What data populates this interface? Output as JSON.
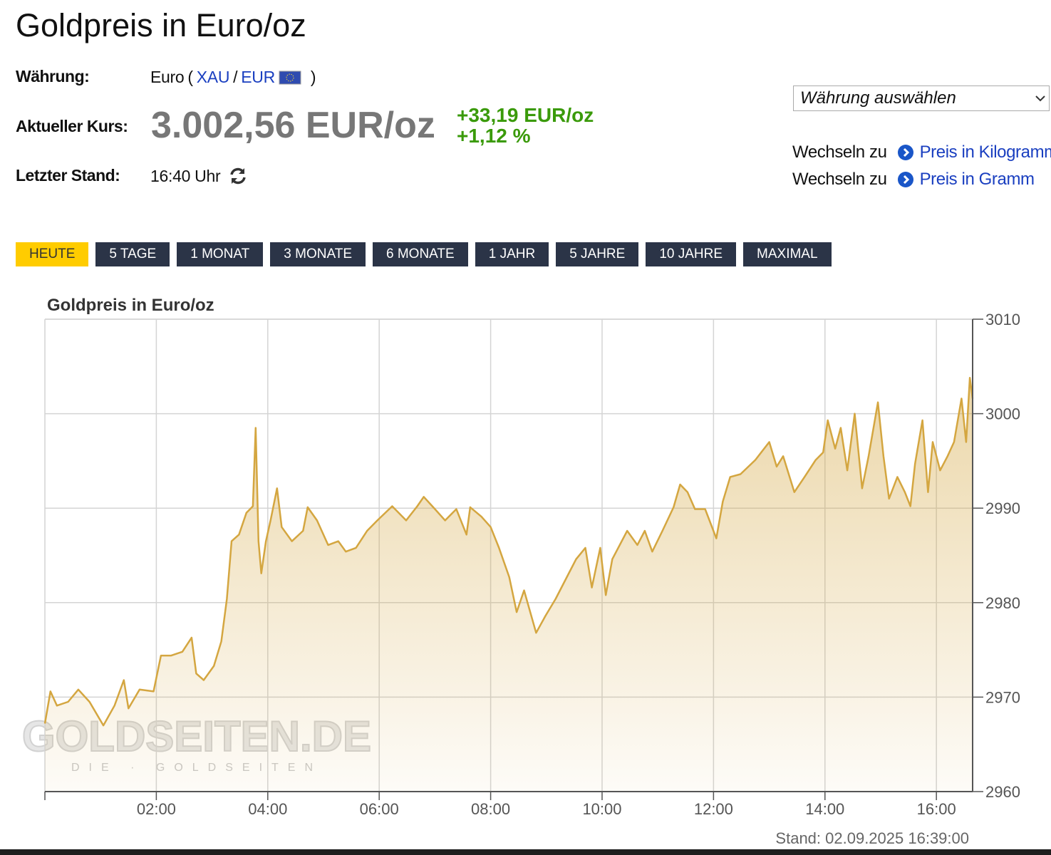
{
  "header": {
    "title": "Goldpreis in Euro/oz"
  },
  "info": {
    "currency_label": "Währung:",
    "currency_name": "Euro",
    "paren_open": "(",
    "base": "XAU",
    "slash": "/",
    "quote": "EUR",
    "paren_close": ")",
    "price_label": "Aktueller Kurs:",
    "price": "3.002,56 EUR/oz",
    "change_abs": "+33,19 EUR/oz",
    "change_pct": "+1,12 %",
    "time_label": "Letzter Stand:",
    "time": "16:40 Uhr"
  },
  "sidebar": {
    "select": "Währung auswählen",
    "links": [
      {
        "prefix": "Wechseln zu",
        "label": "Preis in Kilogramm"
      },
      {
        "prefix": "Wechseln zu",
        "label": "Preis in Gramm"
      }
    ]
  },
  "tabs": [
    "HEUTE",
    "5 TAGE",
    "1 MONAT",
    "3 MONATE",
    "6 MONATE",
    "1 JAHR",
    "5 JAHRE",
    "10 JAHRE",
    "MAXIMAL"
  ],
  "active_tab": 0,
  "chart_data": {
    "type": "area",
    "title": "Goldpreis in Euro/oz",
    "x": [
      "00:00",
      "00:06",
      "00:13",
      "00:25",
      "00:36",
      "00:48",
      "01:03",
      "01:15",
      "01:25",
      "01:30",
      "01:42",
      "01:57",
      "02:05",
      "02:16",
      "02:28",
      "02:38",
      "02:43",
      "02:51",
      "03:02",
      "03:10",
      "03:16",
      "03:21",
      "03:29",
      "03:37",
      "03:44",
      "03:47",
      "03:50",
      "03:53",
      "03:58",
      "04:03",
      "04:10",
      "04:15",
      "04:26",
      "04:38",
      "04:43",
      "04:53",
      "05:05",
      "05:16",
      "05:24",
      "05:35",
      "05:47",
      "05:58",
      "06:14",
      "06:29",
      "06:41",
      "06:48",
      "07:00",
      "07:11",
      "07:23",
      "07:34",
      "07:38",
      "07:50",
      "08:00",
      "08:09",
      "08:20",
      "08:28",
      "08:36",
      "08:49",
      "08:59",
      "09:10",
      "09:22",
      "09:32",
      "09:42",
      "09:49",
      "09:58",
      "10:04",
      "10:11",
      "10:27",
      "10:38",
      "10:46",
      "10:54",
      "11:05",
      "11:17",
      "11:24",
      "11:32",
      "11:40",
      "11:51",
      "12:03",
      "12:10",
      "12:18",
      "12:29",
      "12:45",
      "13:00",
      "13:08",
      "13:15",
      "13:27",
      "13:38",
      "13:50",
      "13:58",
      "14:03",
      "14:11",
      "14:17",
      "14:24",
      "14:32",
      "14:40",
      "14:47",
      "14:57",
      "15:03",
      "15:09",
      "15:18",
      "15:26",
      "15:32",
      "15:37",
      "15:45",
      "15:51",
      "15:56",
      "16:04",
      "16:12",
      "16:19",
      "16:27",
      "16:32",
      "16:36",
      "16:39"
    ],
    "series": [
      {
        "name": "Goldpreis",
        "color": "#d4a640",
        "values": [
          2967.2,
          2970.6,
          2969.1,
          2969.5,
          2970.8,
          2969.5,
          2967.0,
          2969.1,
          2971.8,
          2968.8,
          2970.8,
          2970.6,
          2974.4,
          2974.4,
          2974.8,
          2976.3,
          2972.5,
          2971.8,
          2973.3,
          2975.9,
          2980.4,
          2986.5,
          2987.2,
          2989.5,
          2990.2,
          2998.5,
          2986.5,
          2983.1,
          2986.5,
          2988.7,
          2992.1,
          2988.0,
          2986.5,
          2987.6,
          2990.1,
          2988.7,
          2986.1,
          2986.5,
          2985.4,
          2985.8,
          2987.6,
          2988.7,
          2990.2,
          2988.7,
          2990.2,
          2991.2,
          2989.9,
          2988.7,
          2989.9,
          2987.2,
          2990.1,
          2989.1,
          2988.0,
          2985.8,
          2982.7,
          2979.0,
          2981.3,
          2976.8,
          2978.6,
          2980.4,
          2982.7,
          2984.6,
          2985.8,
          2981.6,
          2985.8,
          2980.8,
          2984.6,
          2987.6,
          2986.1,
          2987.6,
          2985.4,
          2987.6,
          2990.1,
          2992.5,
          2991.7,
          2989.9,
          2989.9,
          2986.8,
          2990.7,
          2993.3,
          2993.6,
          2995.1,
          2997.0,
          2994.4,
          2995.5,
          2991.7,
          2993.3,
          2995.1,
          2995.9,
          2999.3,
          2996.3,
          2998.5,
          2994.0,
          3000.0,
          2992.1,
          2995.5,
          3001.2,
          2995.5,
          2991.0,
          2993.3,
          2991.7,
          2990.2,
          2994.7,
          2999.3,
          2991.7,
          2997.0,
          2994.0,
          2995.5,
          2997.0,
          3001.6,
          2997.0,
          3003.8,
          3001.6
        ]
      }
    ],
    "xlim": [
      "00:00",
      "16:39"
    ],
    "xticks": [
      "02:00",
      "04:00",
      "06:00",
      "08:00",
      "10:00",
      "12:00",
      "14:00",
      "16:00"
    ],
    "ylim": [
      2960,
      3010
    ],
    "yticks": [
      2960,
      2970,
      2980,
      2990,
      3000,
      3010
    ],
    "grid": true,
    "footer": "Stand: 02.09.2025 16:39:00",
    "watermark": "GOLDSEITEN.DE",
    "watermark_sub": "DIE · GOLDSEITEN"
  }
}
